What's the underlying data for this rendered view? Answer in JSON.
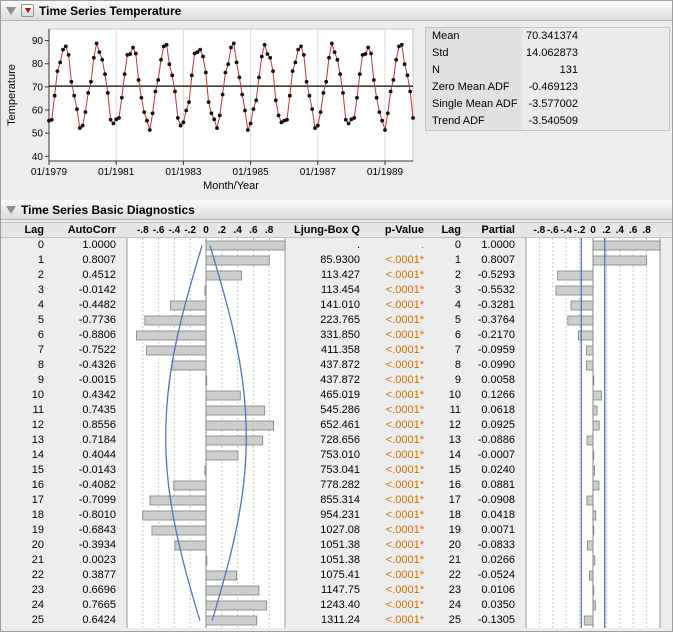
{
  "colors": {
    "series_line": "#C83434",
    "point": "#111111",
    "mean_line": "#000000",
    "curve_blue": "#4F74BE",
    "pvalue_orange": "#CE6F00",
    "bar_fill": "#CDCDCD",
    "bar_border": "#7F7F7F",
    "grid_dash": "#B8B8B8",
    "grid_center": "#8A8A8A",
    "plot_edge": "#999999"
  },
  "series": {
    "title": "Time Series Temperature"
  },
  "summary": {
    "rows": [
      {
        "label": "Mean",
        "value": "70.341374"
      },
      {
        "label": "Std",
        "value": "14.062873"
      },
      {
        "label": "N",
        "value": "131"
      },
      {
        "label": "Zero Mean ADF",
        "value": "-0.469123"
      },
      {
        "label": "Single Mean ADF",
        "value": "-3.577002"
      },
      {
        "label": "Trend ADF",
        "value": "-3.540509"
      }
    ]
  },
  "diagnostics": {
    "title": "Time Series Basic Diagnostics",
    "table": {
      "headers": {
        "lag": "Lag",
        "autocorr": "AutoCorr",
        "ljung": "Ljung-Box Q",
        "pvalue": "p-Value",
        "lag2": "Lag",
        "partial": "Partial"
      },
      "axis_ticks": [
        {
          "label": "-.8",
          "v": -0.8
        },
        {
          "label": "-.6",
          "v": -0.6
        },
        {
          "label": "-.4",
          "v": -0.4
        },
        {
          "label": "-.2",
          "v": -0.2
        },
        {
          "label": "0",
          "v": 0
        },
        {
          "label": ".2",
          "v": 0.2
        },
        {
          "label": ".4",
          "v": 0.4
        },
        {
          "label": ".6",
          "v": 0.6
        },
        {
          "label": ".8",
          "v": 0.8
        }
      ],
      "lags": [
        0,
        1,
        2,
        3,
        4,
        5,
        6,
        7,
        8,
        9,
        10,
        11,
        12,
        13,
        14,
        15,
        16,
        17,
        18,
        19,
        20,
        21,
        22,
        23,
        24,
        25
      ],
      "ljung_box_q": [
        ".",
        "85.9300",
        "113.427",
        "113.454",
        "141.010",
        "223.765",
        "331.850",
        "411.358",
        "437.872",
        "437.872",
        "465.019",
        "545.286",
        "652.461",
        "728.656",
        "753.010",
        "753.041",
        "778.282",
        "855.314",
        "954.231",
        "1027.08",
        "1051.38",
        "1051.38",
        "1075.41",
        "1147.75",
        "1243.40",
        "1311.24"
      ],
      "p_values": [
        ".",
        "<.0001*",
        "<.0001*",
        "<.0001*",
        "<.0001*",
        "<.0001*",
        "<.0001*",
        "<.0001*",
        "<.0001*",
        "<.0001*",
        "<.0001*",
        "<.0001*",
        "<.0001*",
        "<.0001*",
        "<.0001*",
        "<.0001*",
        "<.0001*",
        "<.0001*",
        "<.0001*",
        "<.0001*",
        "<.0001*",
        "<.0001*",
        "<.0001*",
        "<.0001*",
        "<.0001*",
        "<.0001*"
      ]
    }
  },
  "chart_data": [
    {
      "id": "time_series",
      "type": "line",
      "title": "Time Series Temperature",
      "xlabel": "Month/Year",
      "ylabel": "Temperature",
      "x_tick_labels": [
        "01/1979",
        "01/1981",
        "01/1983",
        "01/1985",
        "01/1987",
        "01/1989"
      ],
      "x_tick_positions": [
        0,
        24,
        48,
        72,
        96,
        120
      ],
      "y_ticks": [
        40,
        50,
        60,
        70,
        80,
        90
      ],
      "ylim": [
        38,
        95
      ],
      "n_points": 131,
      "mean_line": 70.341374,
      "values": [
        55.4,
        55.8,
        66.2,
        76.8,
        80.6,
        86.1,
        87.5,
        83.8,
        72.2,
        66.2,
        60.4,
        52.2,
        53.3,
        59.1,
        67.4,
        72.2,
        82.6,
        88.8,
        85.0,
        81.7,
        75.5,
        67.4,
        55.8,
        54.2,
        56.0,
        56.6,
        65.3,
        75.5,
        83.8,
        84.2,
        87.0,
        84.4,
        73.0,
        65.3,
        59.1,
        55.4,
        51.4,
        58.6,
        68.0,
        73.0,
        81.7,
        87.5,
        88.2,
        79.8,
        75.0,
        68.0,
        56.6,
        53.3,
        54.7,
        59.8,
        63.4,
        75.0,
        84.4,
        85.0,
        86.1,
        83.1,
        76.2,
        63.4,
        58.6,
        56.0,
        52.2,
        57.7,
        66.7,
        76.2,
        79.8,
        87.0,
        88.8,
        80.6,
        74.1,
        66.7,
        59.8,
        51.4,
        54.2,
        60.4,
        64.2,
        74.1,
        83.1,
        88.2,
        84.2,
        82.6,
        76.8,
        64.2,
        57.7,
        54.7,
        55.4,
        55.8,
        66.2,
        76.8,
        80.6,
        86.1,
        87.5,
        83.8,
        72.2,
        66.2,
        60.4,
        52.2,
        53.3,
        59.1,
        67.4,
        72.2,
        82.6,
        88.8,
        85.0,
        81.7,
        75.5,
        67.4,
        55.8,
        54.2,
        56.0,
        56.6,
        65.3,
        75.5,
        83.8,
        84.2,
        87.0,
        84.4,
        73.0,
        65.3,
        59.1,
        55.4,
        51.4,
        58.6,
        68.0,
        73.0,
        81.7,
        87.5,
        88.2,
        79.8,
        75.0,
        68.0,
        56.6
      ]
    },
    {
      "id": "acf",
      "type": "bar",
      "name": "AutoCorr",
      "orientation": "horizontal",
      "xlim": [
        -1,
        1
      ],
      "lags": [
        0,
        1,
        2,
        3,
        4,
        5,
        6,
        7,
        8,
        9,
        10,
        11,
        12,
        13,
        14,
        15,
        16,
        17,
        18,
        19,
        20,
        21,
        22,
        23,
        24,
        25
      ],
      "values": [
        1.0,
        0.8007,
        0.4512,
        -0.0142,
        -0.4482,
        -0.7736,
        -0.8806,
        -0.7522,
        -0.4326,
        -0.0015,
        0.4342,
        0.7435,
        0.8556,
        0.7184,
        0.4044,
        -0.0143,
        -0.4082,
        -0.7099,
        -0.801,
        -0.6843,
        -0.3934,
        0.0023,
        0.3877,
        0.6696,
        0.7665,
        0.6424
      ],
      "conf_curve": [
        0.05,
        0.107,
        0.162,
        0.216,
        0.268,
        0.316,
        0.36,
        0.399,
        0.434,
        0.462,
        0.484,
        0.499,
        0.508,
        0.51,
        0.505,
        0.493,
        0.474,
        0.448,
        0.417,
        0.38,
        0.338,
        0.292,
        0.242,
        0.189,
        0.135,
        0.078
      ]
    },
    {
      "id": "pacf",
      "type": "bar",
      "name": "Partial",
      "orientation": "horizontal",
      "xlim": [
        -1,
        1
      ],
      "lags": [
        0,
        1,
        2,
        3,
        4,
        5,
        6,
        7,
        8,
        9,
        10,
        11,
        12,
        13,
        14,
        15,
        16,
        17,
        18,
        19,
        20,
        21,
        22,
        23,
        24,
        25
      ],
      "values": [
        1.0,
        0.8007,
        -0.5293,
        -0.5532,
        -0.3281,
        -0.3764,
        -0.217,
        -0.0959,
        -0.099,
        0.0058,
        0.1266,
        0.0618,
        0.0925,
        -0.0886,
        -0.0007,
        0.024,
        0.0881,
        -0.0908,
        0.0418,
        0.0071,
        -0.0833,
        0.0266,
        -0.0524,
        0.0106,
        0.035,
        -0.1305
      ],
      "conf_limit": 0.1747
    }
  ]
}
